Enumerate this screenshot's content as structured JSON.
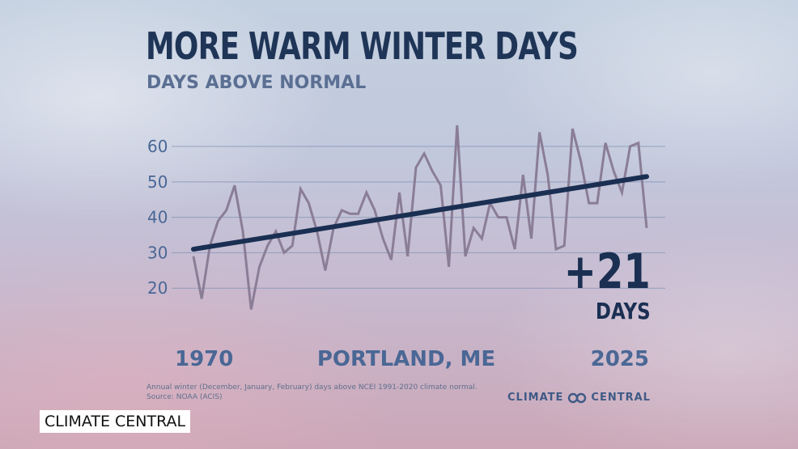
{
  "header": {
    "title": "MORE WARM WINTER DAYS",
    "subtitle": "DAYS ABOVE NORMAL"
  },
  "location": "PORTLAND, ME",
  "change": {
    "value": "+21",
    "unit": "DAYS"
  },
  "footnote": {
    "line1": "Annual winter (December, January, February) days above NCEI 1991-2020 climate normal.",
    "line2": "Source: NOAA (ACIS)"
  },
  "logo": {
    "left": "CLIMATE",
    "right": "CENTRAL"
  },
  "watermark": "CLIMATE CENTRAL",
  "colors": {
    "title": "#1f3557",
    "subtitle": "#5b6f93",
    "data_line": "#8a7d96",
    "trend_line": "#1a2f52",
    "gridline": "#7f92b4",
    "axis_text": "#4a6795"
  },
  "chart_data": {
    "type": "line",
    "x_tick_labels": [
      "1970",
      "2025"
    ],
    "y_ticks": [
      20,
      30,
      40,
      50,
      60
    ],
    "ylim": [
      10,
      68
    ],
    "xlim": [
      1970,
      2025
    ],
    "grid": true,
    "series": [
      {
        "values": [
          [
            1970,
            29
          ],
          [
            1971,
            17
          ],
          [
            1972,
            32
          ],
          [
            1973,
            39
          ],
          [
            1974,
            42
          ],
          [
            1975,
            49
          ],
          [
            1976,
            36
          ],
          [
            1977,
            14
          ],
          [
            1978,
            26
          ],
          [
            1979,
            32
          ],
          [
            1980,
            36
          ],
          [
            1981,
            30
          ],
          [
            1982,
            32
          ],
          [
            1983,
            48
          ],
          [
            1984,
            44
          ],
          [
            1985,
            36
          ],
          [
            1986,
            25
          ],
          [
            1987,
            37
          ],
          [
            1988,
            42
          ],
          [
            1989,
            41
          ],
          [
            1990,
            41
          ],
          [
            1991,
            47
          ],
          [
            1992,
            42
          ],
          [
            1993,
            34
          ],
          [
            1994,
            28
          ],
          [
            1995,
            47
          ],
          [
            1996,
            29
          ],
          [
            1997,
            54
          ],
          [
            1998,
            58
          ],
          [
            1999,
            53
          ],
          [
            2000,
            49
          ],
          [
            2001,
            26
          ],
          [
            2002,
            66
          ],
          [
            2003,
            29
          ],
          [
            2004,
            37
          ],
          [
            2005,
            34
          ],
          [
            2006,
            44
          ],
          [
            2007,
            40
          ],
          [
            2008,
            40
          ],
          [
            2009,
            31
          ],
          [
            2010,
            52
          ],
          [
            2011,
            34
          ],
          [
            2012,
            64
          ],
          [
            2013,
            52
          ],
          [
            2014,
            31
          ],
          [
            2015,
            32
          ],
          [
            2016,
            65
          ],
          [
            2017,
            56
          ],
          [
            2018,
            44
          ],
          [
            2019,
            44
          ],
          [
            2020,
            61
          ],
          [
            2021,
            53
          ],
          [
            2022,
            47
          ],
          [
            2023,
            60
          ],
          [
            2024,
            61
          ],
          [
            2025,
            37
          ]
        ]
      },
      {
        "values": [
          [
            1970,
            31
          ],
          [
            2025,
            51.5
          ]
        ]
      }
    ]
  }
}
